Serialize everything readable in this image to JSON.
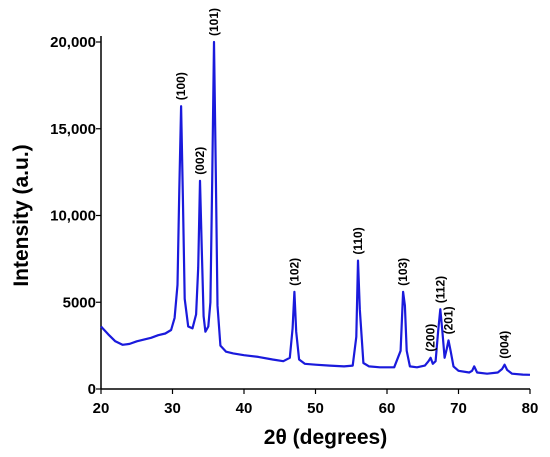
{
  "chart_data": {
    "type": "line",
    "title": "",
    "xlabel": "2θ (degrees)",
    "ylabel": "Intensity (a.u.)",
    "xlim": [
      20,
      80
    ],
    "ylim": [
      0,
      20000
    ],
    "x_ticks": [
      "20",
      "30",
      "40",
      "50",
      "60",
      "70",
      "80"
    ],
    "y_ticks": [
      "0",
      "5000",
      "10,000",
      "15,000",
      "20,000"
    ],
    "grid": false,
    "legend": "none",
    "series": [
      {
        "color": "#1a1adc",
        "x": [
          20,
          21,
          22,
          23,
          24,
          25,
          26,
          27,
          28,
          29,
          29.8,
          30.3,
          30.7,
          30.95,
          31.2,
          31.45,
          31.7,
          32.2,
          32.8,
          33.3,
          33.6,
          33.85,
          34.1,
          34.35,
          34.6,
          35.0,
          35.3,
          35.55,
          35.8,
          36.05,
          36.3,
          36.7,
          37.5,
          38.5,
          40,
          42,
          44,
          45.5,
          46.4,
          46.8,
          47.05,
          47.3,
          47.7,
          48.5,
          50,
          52,
          54,
          55.2,
          55.7,
          55.95,
          56.2,
          56.7,
          57.5,
          59,
          61,
          61.9,
          62.25,
          62.5,
          62.75,
          63.2,
          64.2,
          65.3,
          65.8,
          66.1,
          66.4,
          66.8,
          67.15,
          67.45,
          67.75,
          68.05,
          68.35,
          68.6,
          68.9,
          69.3,
          70,
          71.5,
          71.9,
          72.2,
          72.6,
          74,
          75.5,
          76.1,
          76.45,
          76.8,
          77.5,
          79,
          80
        ],
        "y": [
          3600,
          3150,
          2750,
          2550,
          2600,
          2750,
          2850,
          2950,
          3100,
          3200,
          3400,
          4100,
          6000,
          11500,
          16300,
          11000,
          5200,
          3600,
          3500,
          4300,
          7000,
          12000,
          8000,
          4200,
          3300,
          3600,
          5000,
          12000,
          20000,
          12500,
          4800,
          2500,
          2150,
          2050,
          1950,
          1850,
          1700,
          1600,
          1800,
          3500,
          5600,
          3300,
          1700,
          1450,
          1400,
          1350,
          1300,
          1350,
          3000,
          7400,
          4600,
          1500,
          1300,
          1250,
          1250,
          2200,
          5600,
          4800,
          2200,
          1300,
          1250,
          1350,
          1600,
          1800,
          1450,
          1600,
          3300,
          4600,
          3300,
          1800,
          2300,
          2800,
          2200,
          1300,
          1050,
          950,
          1050,
          1300,
          950,
          880,
          950,
          1150,
          1400,
          1100,
          880,
          830,
          820
        ]
      }
    ],
    "annotations": [
      {
        "text": "(100)",
        "x": 31.2,
        "y": 16300
      },
      {
        "text": "(002)",
        "x": 33.85,
        "y": 12000
      },
      {
        "text": "(101)",
        "x": 35.8,
        "y": 20000
      },
      {
        "text": "(102)",
        "x": 47.05,
        "y": 5600
      },
      {
        "text": "(110)",
        "x": 55.95,
        "y": 7400
      },
      {
        "text": "(103)",
        "x": 62.25,
        "y": 5600
      },
      {
        "text": "(200)",
        "x": 66.1,
        "y": 1800
      },
      {
        "text": "(112)",
        "x": 67.45,
        "y": 4600
      },
      {
        "text": "(201)",
        "x": 68.6,
        "y": 2800
      },
      {
        "text": "(004)",
        "x": 76.45,
        "y": 1400
      }
    ]
  }
}
